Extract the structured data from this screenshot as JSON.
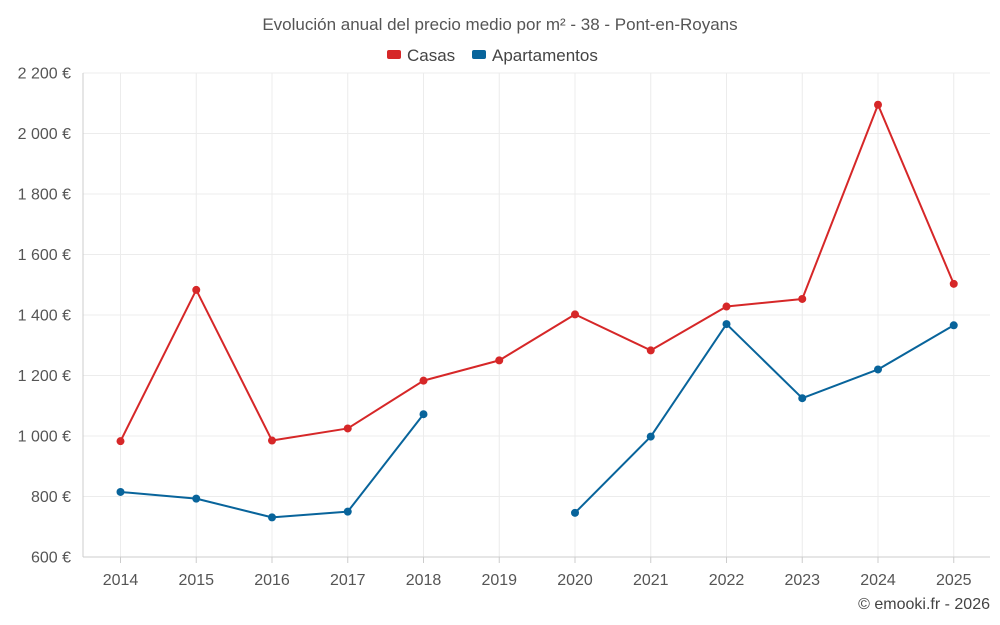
{
  "chart_data": {
    "type": "line",
    "title": "Evolución anual del precio medio por m² - 38 - Pont-en-Royans",
    "categories": [
      "2014",
      "2015",
      "2016",
      "2017",
      "2018",
      "2019",
      "2020",
      "2021",
      "2022",
      "2023",
      "2024",
      "2025"
    ],
    "ylim": [
      600,
      2200
    ],
    "yticks": [
      600,
      800,
      1000,
      1200,
      1400,
      1600,
      1800,
      2000,
      2200
    ],
    "ytick_labels": [
      "600 €",
      "800 €",
      "1 000 €",
      "1 200 €",
      "1 400 €",
      "1 600 €",
      "1 800 €",
      "2 000 €",
      "2 200 €"
    ],
    "grid": true,
    "legend_position": "top-center",
    "series": [
      {
        "name": "Casas",
        "color": "#d62728",
        "values": [
          983,
          1483,
          985,
          1025,
          1183,
          1250,
          1402,
          1283,
          1428,
          1453,
          2095,
          1503
        ]
      },
      {
        "name": "Apartamentos",
        "color": "#08649b",
        "values": [
          815,
          793,
          731,
          750,
          1072,
          null,
          746,
          998,
          1370,
          1125,
          1220,
          1366
        ]
      }
    ]
  },
  "credit": "© emooki.fr - 2026"
}
